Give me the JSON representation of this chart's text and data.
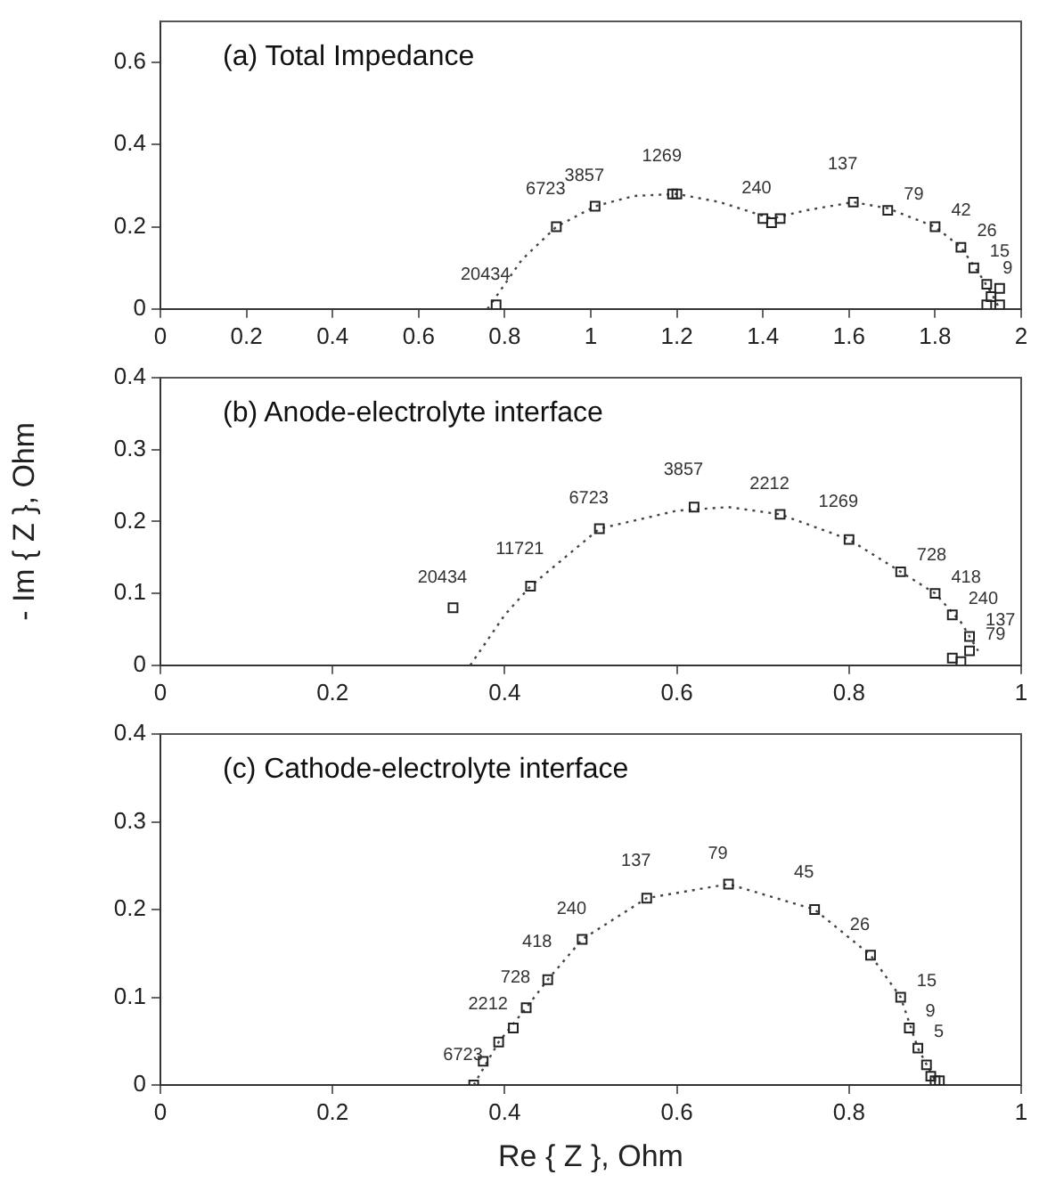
{
  "chart_data": [
    {
      "type": "scatter",
      "title": "(a) Total Impedance",
      "xlim": [
        0,
        2
      ],
      "ylim": [
        0,
        0.7
      ],
      "xticks": [
        0,
        0.2,
        0.4,
        0.6,
        0.8,
        1,
        1.2,
        1.4,
        1.6,
        1.8,
        2
      ],
      "yticks": [
        0,
        0.2,
        0.4,
        0.6
      ],
      "grid": false,
      "legend": false,
      "series": [
        {
          "marker": "square",
          "color": "#222222",
          "x": [
            0.78,
            0.92,
            1.01,
            1.19,
            1.2,
            1.4,
            1.42,
            1.44,
            1.61,
            1.69,
            1.8,
            1.86,
            1.89,
            1.92,
            1.95,
            1.93,
            1.92,
            1.95
          ],
          "values": [
            0.01,
            0.2,
            0.25,
            0.28,
            0.28,
            0.22,
            0.21,
            0.22,
            0.26,
            0.24,
            0.2,
            0.15,
            0.1,
            0.06,
            0.05,
            0.03,
            0.01,
            0.01
          ]
        },
        {
          "type": "line",
          "marker": "none",
          "line_style": "dotted",
          "color": "#444444",
          "x": [
            0.76,
            0.84,
            0.92,
            1.01,
            1.1,
            1.2,
            1.3,
            1.42,
            1.5,
            1.61,
            1.69,
            1.8,
            1.86,
            1.9,
            1.93,
            1.95
          ],
          "values": [
            0,
            0.12,
            0.2,
            0.25,
            0.275,
            0.28,
            0.26,
            0.22,
            0.24,
            0.26,
            0.245,
            0.2,
            0.15,
            0.09,
            0.04,
            0
          ]
        }
      ],
      "annotations": [
        {
          "text": "20434",
          "x": 0.78,
          "y": 0.01
        },
        {
          "text": "6723",
          "x": 0.92,
          "y": 0.2
        },
        {
          "text": "3857",
          "x": 1.01,
          "y": 0.25
        },
        {
          "text": "1269",
          "x": 1.19,
          "y": 0.28
        },
        {
          "text": "240",
          "x": 1.41,
          "y": 0.22
        },
        {
          "text": "137",
          "x": 1.61,
          "y": 0.26
        },
        {
          "text": "79",
          "x": 1.69,
          "y": 0.24
        },
        {
          "text": "42",
          "x": 1.8,
          "y": 0.2
        },
        {
          "text": "26",
          "x": 1.86,
          "y": 0.15
        },
        {
          "text": "15",
          "x": 1.89,
          "y": 0.1
        },
        {
          "text": "9",
          "x": 1.92,
          "y": 0.06
        }
      ]
    },
    {
      "type": "scatter",
      "title": "(b) Anode-electrolyte interface",
      "ylabel": "- Im { Z }, Ohm",
      "xlim": [
        0,
        1
      ],
      "ylim": [
        0,
        0.4
      ],
      "xticks": [
        0,
        0.2,
        0.4,
        0.6,
        0.8,
        1
      ],
      "yticks": [
        0,
        0.1,
        0.2,
        0.3,
        0.4
      ],
      "grid": false,
      "legend": false,
      "series": [
        {
          "marker": "square",
          "color": "#222222",
          "x": [
            0.34,
            0.43,
            0.51,
            0.62,
            0.72,
            0.8,
            0.86,
            0.9,
            0.92,
            0.94,
            0.94,
            0.92,
            0.93
          ],
          "values": [
            0.08,
            0.11,
            0.19,
            0.22,
            0.21,
            0.175,
            0.13,
            0.1,
            0.07,
            0.04,
            0.02,
            0.01,
            0.005
          ]
        },
        {
          "type": "line",
          "marker": "none",
          "line_style": "dotted",
          "color": "#444444",
          "x": [
            0.36,
            0.4,
            0.43,
            0.51,
            0.6,
            0.66,
            0.72,
            0.8,
            0.86,
            0.9,
            0.93,
            0.95
          ],
          "values": [
            0,
            0.07,
            0.11,
            0.19,
            0.215,
            0.22,
            0.21,
            0.175,
            0.13,
            0.1,
            0.06,
            0.02
          ]
        }
      ],
      "annotations": [
        {
          "text": "20434",
          "x": 0.34,
          "y": 0.08
        },
        {
          "text": "11721",
          "x": 0.43,
          "y": 0.11
        },
        {
          "text": "6723",
          "x": 0.51,
          "y": 0.19
        },
        {
          "text": "3857",
          "x": 0.62,
          "y": 0.22
        },
        {
          "text": "2212",
          "x": 0.72,
          "y": 0.21
        },
        {
          "text": "1269",
          "x": 0.8,
          "y": 0.175
        },
        {
          "text": "728",
          "x": 0.86,
          "y": 0.13
        },
        {
          "text": "418",
          "x": 0.9,
          "y": 0.1
        },
        {
          "text": "240",
          "x": 0.92,
          "y": 0.07
        },
        {
          "text": "137",
          "x": 0.94,
          "y": 0.04
        },
        {
          "text": "79",
          "x": 0.94,
          "y": 0.02
        }
      ]
    },
    {
      "type": "scatter",
      "title": "(c) Cathode-electrolyte interface",
      "xlabel": "Re { Z }, Ohm",
      "xlim": [
        0,
        1
      ],
      "ylim": [
        0,
        0.4
      ],
      "xticks": [
        0,
        0.2,
        0.4,
        0.6,
        0.8,
        1
      ],
      "yticks": [
        0,
        0.1,
        0.2,
        0.3,
        0.4
      ],
      "grid": false,
      "legend": false,
      "series": [
        {
          "marker": "square",
          "color": "#222222",
          "x": [
            0.364,
            0.375,
            0.393,
            0.41,
            0.425,
            0.45,
            0.49,
            0.565,
            0.66,
            0.76,
            0.825,
            0.86,
            0.87,
            0.88,
            0.89,
            0.895,
            0.9,
            0.905
          ],
          "values": [
            0,
            0.027,
            0.049,
            0.065,
            0.088,
            0.12,
            0.166,
            0.213,
            0.229,
            0.2,
            0.148,
            0.1,
            0.065,
            0.042,
            0.023,
            0.01,
            0.005,
            0.005
          ]
        },
        {
          "type": "line",
          "marker": "none",
          "line_style": "dotted",
          "color": "#444444",
          "x": [
            0.364,
            0.393,
            0.425,
            0.45,
            0.49,
            0.565,
            0.66,
            0.76,
            0.825,
            0.86,
            0.88,
            0.9
          ],
          "values": [
            0,
            0.049,
            0.088,
            0.12,
            0.166,
            0.213,
            0.229,
            0.2,
            0.148,
            0.1,
            0.042,
            0.005
          ]
        }
      ],
      "annotations": [
        {
          "text": "6723",
          "x": 0.364,
          "y": 0
        },
        {
          "text": "2212",
          "x": 0.393,
          "y": 0.049
        },
        {
          "text": "728",
          "x": 0.425,
          "y": 0.088
        },
        {
          "text": "418",
          "x": 0.45,
          "y": 0.12
        },
        {
          "text": "240",
          "x": 0.49,
          "y": 0.166
        },
        {
          "text": "137",
          "x": 0.565,
          "y": 0.213
        },
        {
          "text": "79",
          "x": 0.66,
          "y": 0.229
        },
        {
          "text": "45",
          "x": 0.76,
          "y": 0.2
        },
        {
          "text": "26",
          "x": 0.825,
          "y": 0.148
        },
        {
          "text": "15",
          "x": 0.86,
          "y": 0.1
        },
        {
          "text": "9",
          "x": 0.87,
          "y": 0.065
        },
        {
          "text": "5",
          "x": 0.88,
          "y": 0.042
        }
      ]
    }
  ]
}
